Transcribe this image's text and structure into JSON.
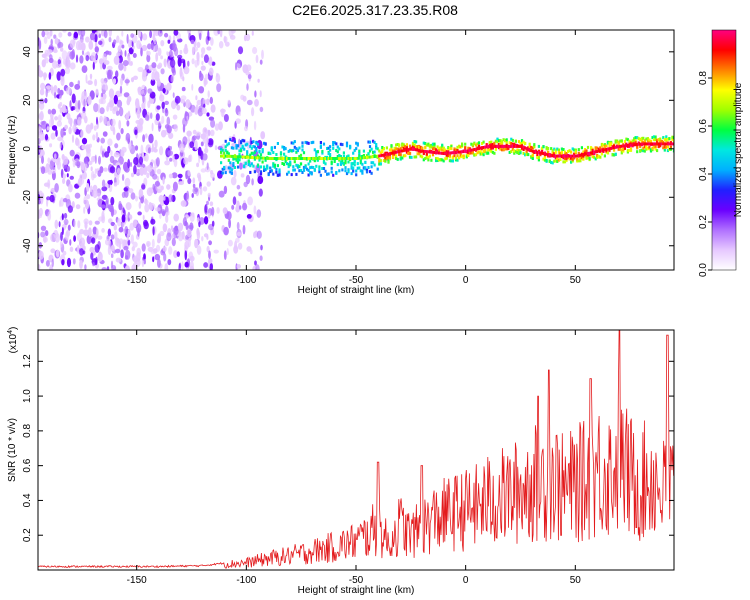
{
  "title": "C2E6.2025.317.23.35.R08",
  "colors": {
    "snr_line": "#e31a1c",
    "colormap": [
      "#ffffff",
      "#e6c8ff",
      "#b070ff",
      "#6a00ff",
      "#2020ff",
      "#00b0ff",
      "#00e8e0",
      "#00ff40",
      "#a0ff00",
      "#ffff00",
      "#ff8000",
      "#ff0000",
      "#ff0080"
    ]
  },
  "chart_data": [
    {
      "type": "heatmap",
      "title": "C2E6.2025.317.23.35.R08",
      "xlabel": "Height of straight line (km)",
      "ylabel": "Frequency (Hz)",
      "xlim": [
        -195,
        95
      ],
      "ylim": [
        -50,
        49
      ],
      "xticks": [
        -150,
        -100,
        -50,
        0,
        50
      ],
      "yticks": [
        -40,
        -20,
        0,
        20,
        40
      ],
      "colorbar": {
        "label": "Normalized spectral amplitude",
        "range": [
          0,
          1
        ],
        "ticks": [
          "0.0",
          "0.2",
          "0.4",
          "0.6",
          "0.8"
        ],
        "tick_values": [
          0,
          0.2,
          0.4,
          0.6,
          0.8
        ]
      },
      "ridge": {
        "x": [
          -110,
          -90,
          -70,
          -50,
          -40,
          -30,
          -25,
          -20,
          -10,
          0,
          10,
          20,
          25,
          30,
          40,
          50,
          60,
          70,
          80,
          95
        ],
        "y": [
          -3,
          -4,
          -4,
          -4,
          -3,
          -1,
          0,
          -1,
          -2,
          -1,
          1,
          1,
          1,
          -1,
          -3,
          -3,
          -1,
          1,
          2,
          2
        ]
      }
    },
    {
      "type": "line",
      "xlabel": "Height of straight line (km)",
      "ylabel": "SNR (10 * v/v)",
      "y_multiplier": "(x10",
      "y_multiplier_exp": "4",
      "xlim": [
        -195,
        95
      ],
      "ylim": [
        0,
        1.38
      ],
      "xticks": [
        -150,
        -100,
        -50,
        0,
        50
      ],
      "yticks": [
        0.2,
        0.4,
        0.6,
        0.8,
        1.0,
        1.2
      ],
      "ytick_labels": [
        "0.2",
        "0.4",
        "0.6",
        "0.8",
        "1.0",
        "1.2"
      ],
      "series": [
        {
          "x": [
            -195,
            -180,
            -160,
            -140,
            -120,
            -110,
            -100,
            -90,
            -80,
            -70,
            -60,
            -55,
            -50,
            -45,
            -40,
            -35,
            -30,
            -25,
            -20,
            -15,
            -10,
            -5,
            0,
            5,
            10,
            15,
            20,
            25,
            30,
            35,
            40,
            45,
            50,
            55,
            60,
            65,
            70,
            75,
            80,
            85,
            90,
            95
          ],
          "values": [
            0.02,
            0.02,
            0.02,
            0.02,
            0.025,
            0.04,
            0.05,
            0.08,
            0.1,
            0.13,
            0.16,
            0.18,
            0.2,
            0.24,
            0.3,
            0.18,
            0.32,
            0.24,
            0.3,
            0.35,
            0.38,
            0.4,
            0.42,
            0.44,
            0.48,
            0.5,
            0.52,
            0.55,
            0.6,
            0.62,
            0.64,
            0.55,
            0.6,
            0.62,
            0.7,
            0.68,
            0.75,
            0.65,
            0.6,
            0.65,
            0.55,
            0.6
          ],
          "peaks": {
            "x": [
              -40,
              -20,
              33,
              38,
              57,
              70,
              92
            ],
            "values": [
              0.62,
              0.6,
              1.0,
              1.15,
              1.1,
              1.38,
              1.35
            ]
          }
        }
      ]
    }
  ]
}
